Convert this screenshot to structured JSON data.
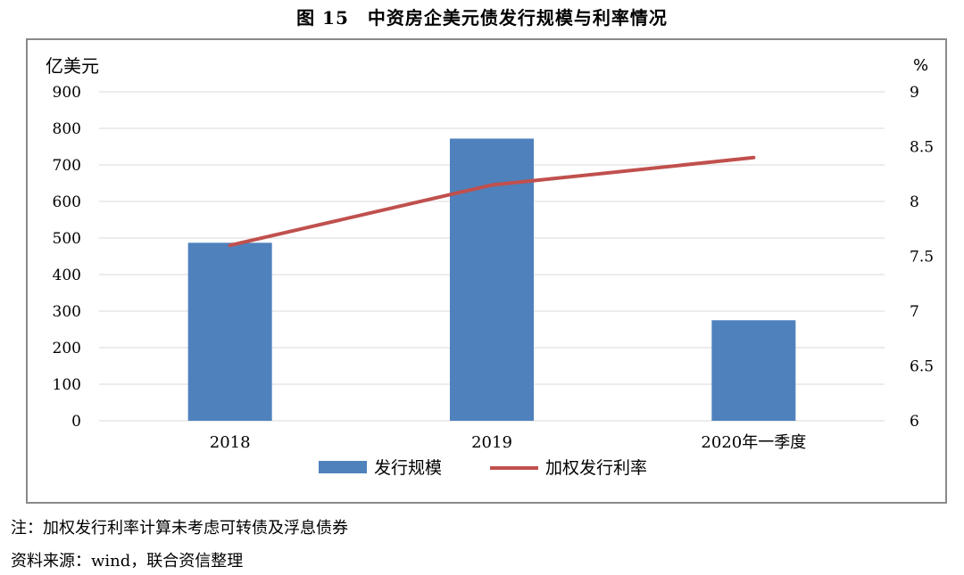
{
  "figure_title": "图 15　中资房企美元债发行规模与利率情况",
  "notes": {
    "note1": "注：加权发行利率计算未考虑可转债及浮息债券",
    "source": "资料来源：wind，联合资信整理"
  },
  "colors": {
    "bar": "#4f81bd",
    "line": "#c0504d",
    "grid": "#d9d9d9",
    "frame": "#8a8a8a"
  },
  "chart_data": {
    "type": "bar",
    "title": "图 15　中资房企美元债发行规模与利率情况",
    "categories": [
      "2018",
      "2019",
      "2020年一季度"
    ],
    "y_left": {
      "label": "亿美元",
      "lim": [
        0,
        900
      ],
      "ticks": [
        "0",
        "100",
        "200",
        "300",
        "400",
        "500",
        "600",
        "700",
        "800",
        "900"
      ]
    },
    "y_right": {
      "label": "%",
      "lim": [
        6,
        9
      ],
      "ticks": [
        "6",
        "6.5",
        "7",
        "7.5",
        "8",
        "8.5",
        "9"
      ]
    },
    "series": [
      {
        "name": "发行规模",
        "type": "bar",
        "axis": "left",
        "values": [
          487,
          772,
          275
        ]
      },
      {
        "name": "加权发行利率",
        "type": "line",
        "axis": "right",
        "values": [
          7.6,
          8.15,
          8.4
        ]
      }
    ],
    "grid": true,
    "legend": "bottom"
  }
}
